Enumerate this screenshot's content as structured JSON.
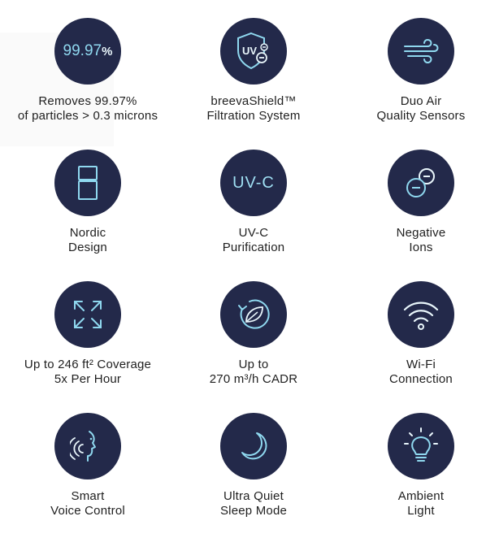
{
  "features": [
    {
      "id": "filtration-efficiency",
      "icon": "percent-badge-icon",
      "badge_value": "99.97",
      "badge_unit": "%",
      "lines": [
        "Removes 99.97%",
        "of particles > 0.3 microns"
      ]
    },
    {
      "id": "breevashield",
      "icon": "uv-shield-icon",
      "lines": [
        "breevaShield™",
        "Filtration System"
      ]
    },
    {
      "id": "duo-air-sensors",
      "icon": "wind-icon",
      "lines": [
        "Duo Air",
        "Quality Sensors"
      ]
    },
    {
      "id": "nordic-design",
      "icon": "purifier-outline-icon",
      "lines": [
        "Nordic",
        "Design"
      ]
    },
    {
      "id": "uvc-purification",
      "icon": "uvc-text-icon",
      "badge_text": "UV-C",
      "lines": [
        "UV-C",
        "Purification"
      ]
    },
    {
      "id": "negative-ions",
      "icon": "negative-ions-icon",
      "lines": [
        "Negative",
        "Ions"
      ]
    },
    {
      "id": "coverage",
      "icon": "expand-arrows-icon",
      "lines": [
        "Up to 246 ft² Coverage",
        "5x Per Hour"
      ]
    },
    {
      "id": "cadr",
      "icon": "leaf-cycle-icon",
      "lines": [
        "Up to",
        "270 m³/h CADR"
      ]
    },
    {
      "id": "wifi",
      "icon": "wifi-icon",
      "lines": [
        "Wi-Fi",
        "Connection"
      ]
    },
    {
      "id": "voice-control",
      "icon": "voice-face-icon",
      "lines": [
        "Smart",
        "Voice Control"
      ]
    },
    {
      "id": "sleep-mode",
      "icon": "moon-icon",
      "lines": [
        "Ultra Quiet",
        "Sleep Mode"
      ]
    },
    {
      "id": "ambient-light",
      "icon": "light-bulb-icon",
      "lines": [
        "Ambient",
        "Light"
      ]
    }
  ],
  "colors": {
    "circle": "#23294a",
    "icon": "#8fd8ef",
    "text": "#1f1f1f"
  }
}
